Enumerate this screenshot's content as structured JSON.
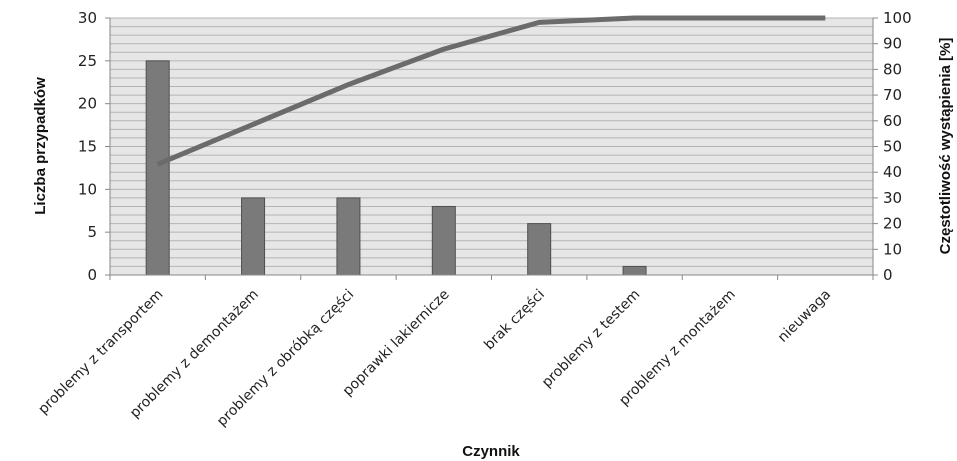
{
  "chart_data": {
    "type": "bar",
    "title": "",
    "xlabel": "Czynnik",
    "ylabel": "Liczba przypadków",
    "y2label": "Częstotliwość wystąpienia [%]",
    "categories": [
      "problemy z transportem",
      "problemy z demontażem",
      "problemy z obróbką części",
      "poprawki lakiernicze",
      "brak części",
      "problemy z testem",
      "problemy z montażem",
      "nieuwaga"
    ],
    "series": [
      {
        "type": "bar",
        "axis": "left",
        "values": [
          25,
          9,
          9,
          8,
          6,
          1,
          0,
          0
        ]
      },
      {
        "type": "line",
        "axis": "right",
        "values": [
          43.1,
          58.6,
          74.1,
          87.9,
          98.3,
          100,
          100,
          100
        ]
      }
    ],
    "ylim": [
      0,
      30
    ],
    "y2lim": [
      0,
      100
    ],
    "yticks": [
      0,
      5,
      10,
      15,
      20,
      25,
      30
    ],
    "y2ticks": [
      0,
      10,
      20,
      30,
      40,
      50,
      60,
      70,
      80,
      90,
      100
    ],
    "grid": true,
    "legend": "none",
    "colors": {
      "bar": "#7a7a7a",
      "bar_stroke": "#4f4f4f",
      "line": "#6b6b6b",
      "plot_bg": "#e6e6e6",
      "grid": "#b4b4b4"
    }
  }
}
